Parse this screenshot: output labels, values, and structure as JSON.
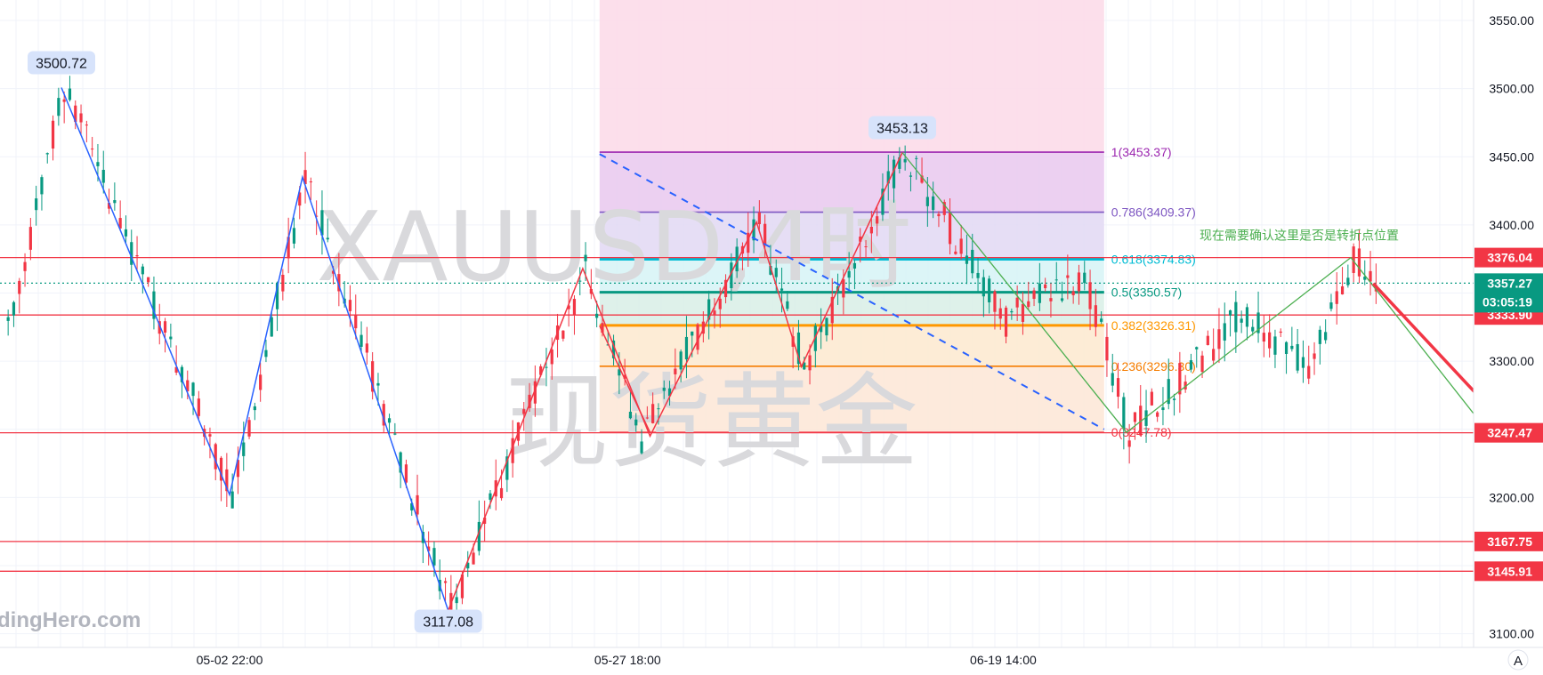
{
  "chart_data": {
    "type": "candlestick",
    "symbol_watermark": "XAUUSD,4时",
    "watermark_subtitle": "现货黄金",
    "ylim": [
      3090,
      3565
    ],
    "y_ticks": [
      "3550.00",
      "3500.00",
      "3450.00",
      "3400.00",
      "3350.00",
      "3300.00",
      "3250.00",
      "3200.00",
      "3150.00",
      "3100.00"
    ],
    "x_ticks": [
      {
        "label": "05-02 22:00",
        "bar": 40
      },
      {
        "label": "05-27 18:00",
        "bar": 111
      },
      {
        "label": "06-19 14:00",
        "bar": 178
      }
    ],
    "bar_count": 245,
    "price_path": [
      [
        0,
        3320
      ],
      [
        10,
        3500.72
      ],
      [
        40,
        3202
      ],
      [
        53,
        3435
      ],
      [
        79,
        3117.08
      ],
      [
        103,
        3368
      ],
      [
        113,
        3245
      ],
      [
        134,
        3402
      ],
      [
        142,
        3296
      ],
      [
        160,
        3453.13
      ],
      [
        178,
        3330
      ],
      [
        192,
        3365
      ],
      [
        200,
        3247.78
      ],
      [
        220,
        3335
      ],
      [
        232,
        3300
      ],
      [
        240,
        3375
      ],
      [
        244,
        3357.27
      ]
    ],
    "pivot_labels": [
      {
        "text": "3500.72",
        "bar": 10,
        "price": 3500.72,
        "pos": "above"
      },
      {
        "text": "3117.08",
        "bar": 79,
        "price": 3117.08,
        "pos": "below"
      },
      {
        "text": "3453.13",
        "bar": 160,
        "price": 3453.13,
        "pos": "above"
      }
    ],
    "horizontal_levels": [
      {
        "price": 3376.04,
        "color": "#f23645",
        "label": "3376.04"
      },
      {
        "price": 3333.9,
        "color": "#f23645",
        "label": "3333.90"
      },
      {
        "price": 3247.47,
        "color": "#f23645",
        "label": "3247.47"
      },
      {
        "price": 3167.75,
        "color": "#f23645",
        "label": "3167.75"
      },
      {
        "price": 3145.91,
        "color": "#f23645",
        "label": "3145.91"
      }
    ],
    "current_price": {
      "value": "3357.27",
      "countdown": "03:05:19",
      "price": 3357.27,
      "color": "#089981"
    },
    "fib": {
      "start_bar": 106,
      "end_bar": 196,
      "levels": [
        {
          "ratio": "1",
          "price": 3453.37,
          "label": "1(3453.37)",
          "color": "#9c27b0",
          "fill": "#e9c8ef"
        },
        {
          "ratio": "0.786",
          "price": 3409.37,
          "label": "0.786(3409.37)",
          "color": "#7e57c2",
          "fill": "#e2d8f3"
        },
        {
          "ratio": "0.618",
          "price": 3374.83,
          "label": "0.618(3374.83)",
          "color": "#00bcd4",
          "fill": "#d6f3f6"
        },
        {
          "ratio": "0.5",
          "price": 3350.57,
          "label": "0.5(3350.57)",
          "color": "#089981",
          "fill": "#d8efe6"
        },
        {
          "ratio": "0.382",
          "price": 3326.31,
          "label": "0.382(3326.31)",
          "color": "#ff9800",
          "fill": "#fde9cf"
        },
        {
          "ratio": "0.236",
          "price": 3296.3,
          "label": "0.236(3296.30)",
          "color": "#f57c00",
          "fill": "#fde6d6"
        },
        {
          "ratio": "0",
          "price": 3247.78,
          "label": "0(3247.78)",
          "color": "#f23645",
          "fill": "#fde6d6"
        }
      ],
      "zone_top_price": 3565
    },
    "blue_zigzag": [
      [
        10,
        3500.72
      ],
      [
        40,
        3202
      ],
      [
        53,
        3435
      ],
      [
        79,
        3117.08
      ]
    ],
    "red_zigzag": [
      [
        79,
        3117.08
      ],
      [
        103,
        3368
      ],
      [
        115,
        3245
      ],
      [
        134,
        3402
      ],
      [
        142,
        3296
      ],
      [
        160,
        3453.13
      ]
    ],
    "green_lines": [
      [
        160,
        3453.13
      ],
      [
        200,
        3247.78
      ],
      [
        240,
        3376.04
      ],
      [
        280,
        3167
      ]
    ],
    "blue_dashed": [
      [
        106,
        3452
      ],
      [
        196,
        3250
      ]
    ],
    "red_arrow": {
      "from": [
        244,
        3357
      ],
      "to": [
        287,
        3167.75
      ]
    },
    "annotation_text": "现在需要确认这里是否是转折点位置",
    "question_mark": "?"
  },
  "ui": {
    "watermark_brand": "dingHero.com",
    "auto_scale_label": "A"
  }
}
